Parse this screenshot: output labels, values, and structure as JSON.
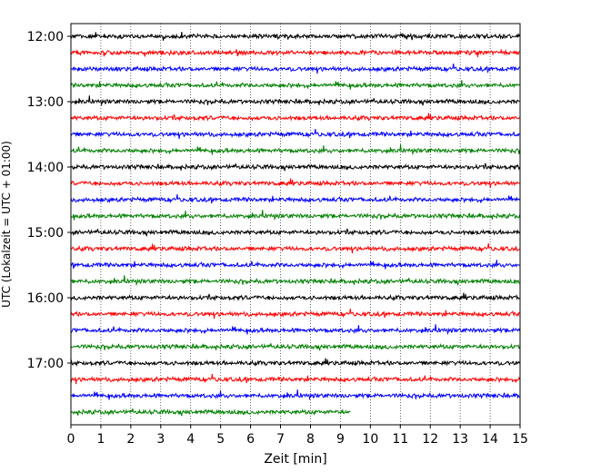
{
  "chart_data": {
    "type": "line",
    "xlabel": "Zeit  [min]",
    "ylabel": "UTC (Lokalzeit = UTC + 01:00)",
    "xlim": [
      0,
      15
    ],
    "x_ticks": [
      "0",
      "1",
      "2",
      "3",
      "4",
      "5",
      "6",
      "7",
      "8",
      "9",
      "10",
      "11",
      "12",
      "13",
      "14",
      "15"
    ],
    "y_ticks": [
      "12:00",
      "13:00",
      "14:00",
      "15:00",
      "16:00",
      "17:00"
    ],
    "grid": "vertical-dotted",
    "trace_interval_min": 15,
    "trace_colors": [
      "#000000",
      "#ff0000",
      "#0000ff",
      "#008000"
    ],
    "traces": [
      {
        "start": "12:00",
        "end_min": 15
      },
      {
        "start": "12:15",
        "end_min": 15
      },
      {
        "start": "12:30",
        "end_min": 15
      },
      {
        "start": "12:45",
        "end_min": 15
      },
      {
        "start": "13:00",
        "end_min": 15
      },
      {
        "start": "13:15",
        "end_min": 15
      },
      {
        "start": "13:30",
        "end_min": 15
      },
      {
        "start": "13:45",
        "end_min": 15
      },
      {
        "start": "14:00",
        "end_min": 15
      },
      {
        "start": "14:15",
        "end_min": 15
      },
      {
        "start": "14:30",
        "end_min": 15
      },
      {
        "start": "14:45",
        "end_min": 15
      },
      {
        "start": "15:00",
        "end_min": 15
      },
      {
        "start": "15:15",
        "end_min": 15
      },
      {
        "start": "15:30",
        "end_min": 15
      },
      {
        "start": "15:45",
        "end_min": 15
      },
      {
        "start": "16:00",
        "end_min": 15
      },
      {
        "start": "16:15",
        "end_min": 15
      },
      {
        "start": "16:30",
        "end_min": 15
      },
      {
        "start": "16:45",
        "end_min": 15
      },
      {
        "start": "17:00",
        "end_min": 15
      },
      {
        "start": "17:15",
        "end_min": 15
      },
      {
        "start": "17:30",
        "end_min": 15
      },
      {
        "start": "17:45",
        "end_min": 9.35
      }
    ]
  }
}
